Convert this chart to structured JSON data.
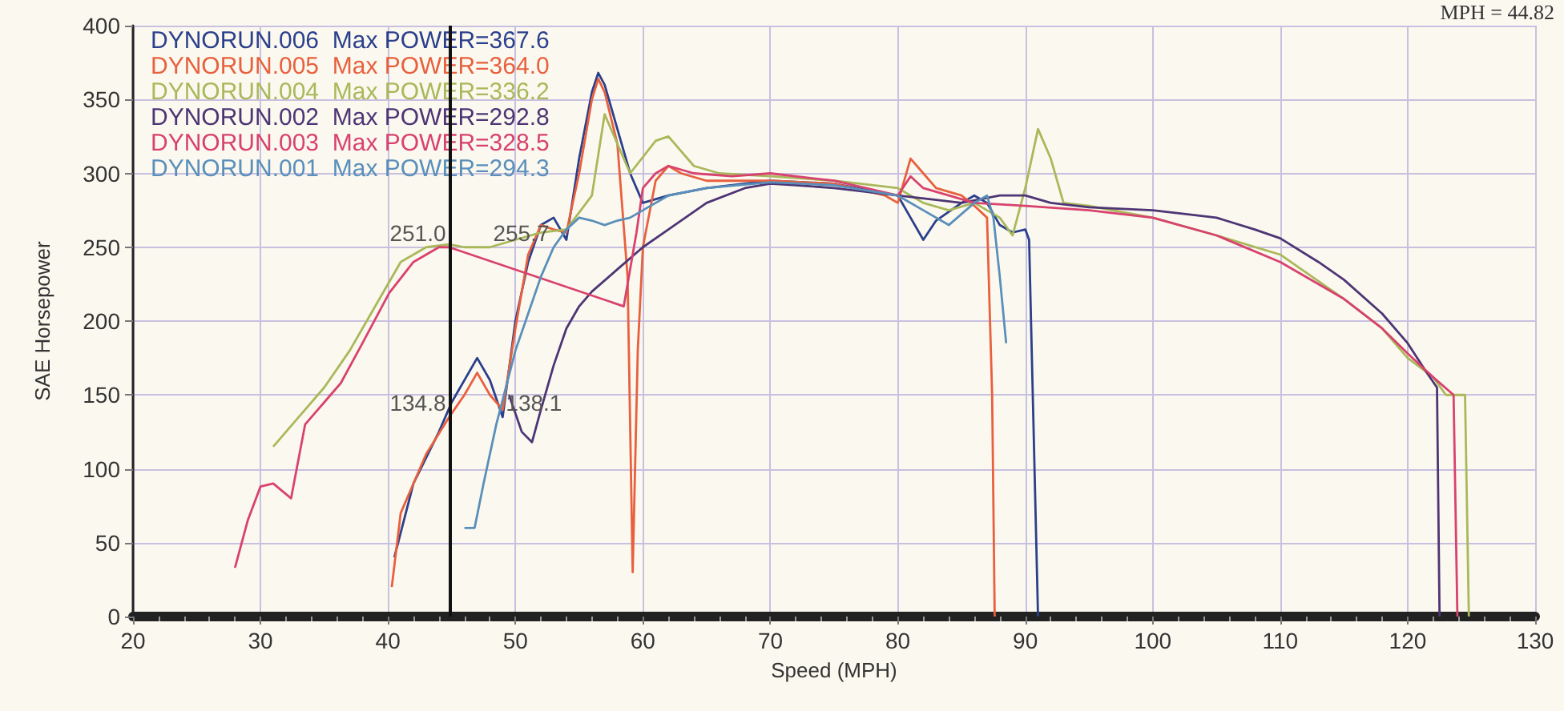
{
  "chart_data": {
    "type": "line",
    "xlabel": "Speed (MPH)",
    "ylabel": "SAE Horsepower",
    "xlim": [
      20,
      130
    ],
    "xticks": [
      20,
      30,
      40,
      50,
      60,
      70,
      80,
      90,
      100,
      110,
      120,
      130
    ],
    "ylim": [
      0,
      400
    ],
    "yticks": [
      0,
      50,
      100,
      150,
      200,
      250,
      300,
      350,
      400
    ],
    "grid": true,
    "legend": "top left",
    "series": [
      {
        "name": "DYNORUN.006  Max POWER=367.6",
        "color": "#2b3f8c",
        "x": [
          40.5,
          42,
          44,
          45,
          47,
          48,
          49,
          50,
          51,
          52,
          53,
          54,
          55,
          56,
          56.5,
          57,
          58,
          59,
          60,
          62,
          65,
          70,
          75,
          78,
          80,
          81,
          82,
          83,
          85,
          86,
          87,
          88,
          89,
          90,
          90.3,
          91
        ],
        "values": [
          40,
          90,
          125,
          145,
          175,
          160,
          135,
          200,
          240,
          265,
          270,
          255,
          310,
          355,
          368,
          360,
          330,
          300,
          280,
          285,
          290,
          295,
          293,
          288,
          285,
          270,
          255,
          268,
          280,
          285,
          280,
          265,
          260,
          262,
          255,
          0
        ]
      },
      {
        "name": "DYNORUN.005  Max POWER=364.0",
        "color": "#e8603e",
        "x": [
          40.3,
          41,
          43,
          44.8,
          46,
          47,
          48,
          49,
          50,
          51,
          52,
          53,
          54,
          55,
          56,
          56.5,
          57,
          58,
          58.8,
          59.2,
          59.6,
          60,
          61,
          62,
          63,
          65,
          70,
          75,
          79,
          80,
          81,
          82,
          83,
          85,
          86,
          87,
          87.4,
          87.6
        ],
        "values": [
          20,
          70,
          110,
          135,
          150,
          165,
          150,
          140,
          195,
          245,
          265,
          262,
          260,
          300,
          350,
          364,
          355,
          320,
          230,
          30,
          180,
          250,
          295,
          305,
          300,
          295,
          295,
          293,
          285,
          280,
          310,
          300,
          290,
          285,
          278,
          270,
          150,
          0
        ]
      },
      {
        "name": "DYNORUN.004  Max POWER=336.2",
        "color": "#a9b85a",
        "x": [
          31,
          33,
          35,
          37,
          39,
          41,
          43,
          44.8,
          46,
          48,
          50,
          52,
          54,
          56,
          57,
          59,
          61,
          62,
          64,
          66,
          70,
          75,
          80,
          82,
          84,
          86,
          88,
          89,
          90,
          91,
          92,
          93,
          95,
          100,
          105,
          110,
          115,
          118,
          120,
          122,
          123,
          124.5,
          124.8
        ],
        "values": [
          115,
          135,
          155,
          180,
          210,
          240,
          250,
          252,
          250,
          250,
          255,
          260,
          262,
          285,
          340,
          300,
          322,
          325,
          305,
          300,
          298,
          295,
          290,
          280,
          275,
          280,
          270,
          258,
          290,
          330,
          310,
          280,
          278,
          270,
          258,
          245,
          215,
          195,
          175,
          162,
          150,
          150,
          0
        ]
      },
      {
        "name": "DYNORUN.002  Max POWER=292.8",
        "color": "#4d3575",
        "x": [
          49.5,
          50.5,
          51.3,
          52,
          53,
          54,
          55,
          56,
          58,
          60,
          62,
          65,
          68,
          70,
          72,
          75,
          80,
          83,
          85,
          88,
          90,
          92,
          95,
          100,
          103,
          105,
          108,
          110,
          113,
          115,
          118,
          120,
          121.5,
          122.3,
          122.5
        ],
        "values": [
          150,
          125,
          118,
          140,
          170,
          195,
          210,
          220,
          235,
          250,
          262,
          280,
          290,
          293,
          292,
          290,
          285,
          282,
          280,
          285,
          285,
          280,
          277,
          275,
          272,
          270,
          262,
          256,
          240,
          228,
          205,
          185,
          165,
          155,
          0
        ]
      },
      {
        "name": "DYNORUN.003  Max POWER=328.5",
        "color": "#d8426e",
        "x": [
          28,
          29,
          30,
          31,
          32.4,
          33.5,
          35,
          36.3,
          38,
          40.1,
          42,
          44,
          44.8,
          58.5,
          59.5,
          60,
          61,
          62,
          64,
          67,
          70,
          75,
          80,
          81,
          82,
          84,
          86,
          90,
          95,
          100,
          105,
          110,
          115,
          118,
          120,
          122,
          123.6,
          123.9
        ],
        "values": [
          33,
          65,
          88,
          90,
          80,
          130,
          145,
          158,
          185,
          219,
          240,
          250,
          250,
          210,
          260,
          290,
          300,
          305,
          300,
          298,
          300,
          295,
          285,
          298,
          290,
          285,
          280,
          278,
          275,
          270,
          258,
          240,
          215,
          195,
          178,
          162,
          150,
          0
        ]
      },
      {
        "name": "DYNORUN.001  Max POWER=294.3",
        "color": "#5a8fba",
        "x": [
          46,
          46.8,
          47.5,
          48.5,
          50,
          51,
          52,
          53,
          54,
          55,
          56,
          57,
          58,
          59,
          60,
          62,
          65,
          70,
          75,
          80,
          82,
          84,
          86,
          87,
          87.5,
          88,
          88.5
        ],
        "values": [
          60,
          60,
          90,
          130,
          180,
          205,
          230,
          250,
          262,
          270,
          268,
          265,
          268,
          270,
          275,
          285,
          290,
          294,
          292,
          285,
          275,
          265,
          280,
          285,
          270,
          230,
          185
        ]
      }
    ],
    "ref_lines": [
      {
        "axis": "x",
        "value": 44.82,
        "label": "MPH = 44.82"
      }
    ],
    "annotations": [
      {
        "text": "251.0",
        "x": 44.8,
        "y": 250
      },
      {
        "text": "255.7",
        "x": 48,
        "y": 250
      },
      {
        "text": "134.8",
        "x": 44.8,
        "y": 135
      },
      {
        "text": "138.1",
        "x": 49,
        "y": 135
      }
    ]
  }
}
